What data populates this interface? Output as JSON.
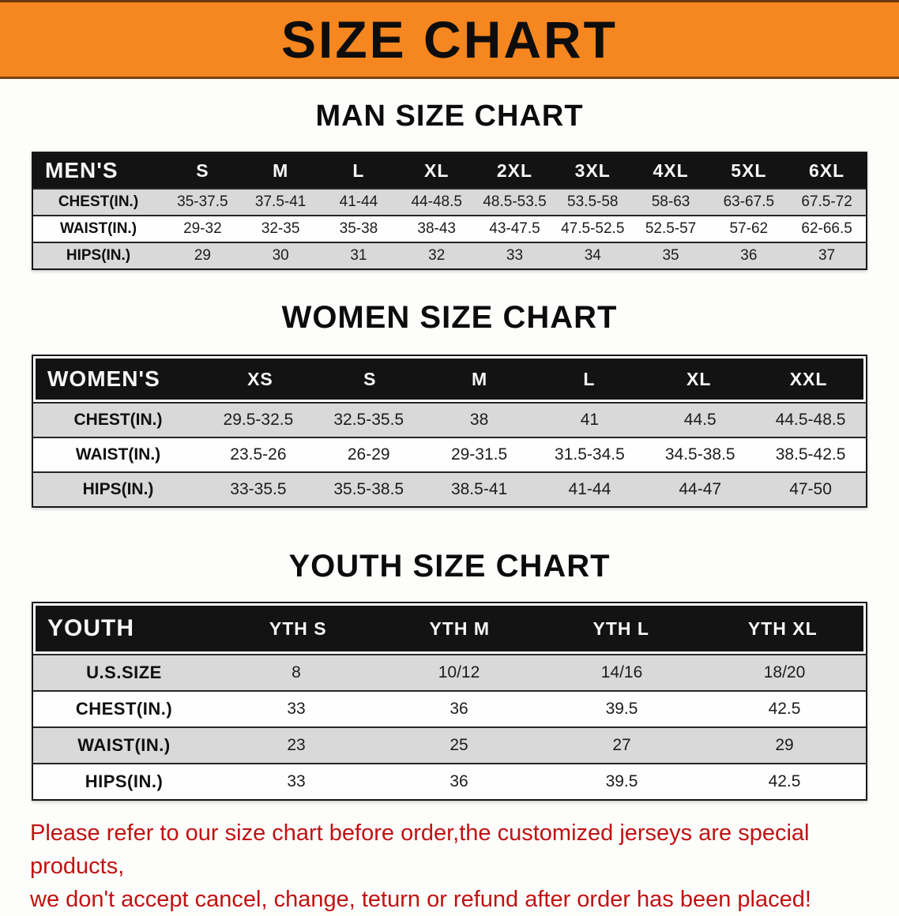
{
  "banner": {
    "title": "SIZE CHART",
    "bg_color": "#f6861f",
    "text_color": "#0d0d0d"
  },
  "charts": [
    {
      "id": "men",
      "heading": "MAN SIZE CHART",
      "header": [
        "MEN'S",
        "S",
        "M",
        "L",
        "XL",
        "2XL",
        "3XL",
        "4XL",
        "5XL",
        "6XL"
      ],
      "rows": [
        {
          "label": "CHEST(IN.)",
          "values": [
            "35-37.5",
            "37.5-41",
            "41-44",
            "44-48.5",
            "48.5-53.5",
            "53.5-58",
            "58-63",
            "63-67.5",
            "67.5-72"
          ]
        },
        {
          "label": "WAIST(IN.)",
          "values": [
            "29-32",
            "32-35",
            "35-38",
            "38-43",
            "43-47.5",
            "47.5-52.5",
            "52.5-57",
            "57-62",
            "62-66.5"
          ]
        },
        {
          "label": "HIPS(IN.)",
          "values": [
            "29",
            "30",
            "31",
            "32",
            "33",
            "34",
            "35",
            "36",
            "37"
          ]
        }
      ]
    },
    {
      "id": "women",
      "heading": "WOMEN SIZE CHART",
      "header": [
        "WOMEN'S",
        "XS",
        "S",
        "M",
        "L",
        "XL",
        "XXL"
      ],
      "rows": [
        {
          "label": "CHEST(IN.)",
          "values": [
            "29.5-32.5",
            "32.5-35.5",
            "38",
            "41",
            "44.5",
            "44.5-48.5"
          ]
        },
        {
          "label": "WAIST(IN.)",
          "values": [
            "23.5-26",
            "26-29",
            "29-31.5",
            "31.5-34.5",
            "34.5-38.5",
            "38.5-42.5"
          ]
        },
        {
          "label": "HIPS(IN.)",
          "values": [
            "33-35.5",
            "35.5-38.5",
            "38.5-41",
            "41-44",
            "44-47",
            "47-50"
          ]
        }
      ]
    },
    {
      "id": "youth",
      "heading": "YOUTH SIZE CHART",
      "header": [
        "YOUTH",
        "YTH S",
        "YTH M",
        "YTH L",
        "YTH XL"
      ],
      "rows": [
        {
          "label": "U.S.SIZE",
          "values": [
            "8",
            "10/12",
            "14/16",
            "18/20"
          ]
        },
        {
          "label": "CHEST(IN.)",
          "values": [
            "33",
            "36",
            "39.5",
            "42.5"
          ]
        },
        {
          "label": "WAIST(IN.)",
          "values": [
            "23",
            "25",
            "27",
            "29"
          ]
        },
        {
          "label": "HIPS(IN.)",
          "values": [
            "33",
            "36",
            "39.5",
            "42.5"
          ]
        }
      ]
    }
  ],
  "disclaimer": {
    "line1": "Please refer to our size chart before order,the customized jerseys are special products,",
    "line2": "we don't accept cancel, change, teturn or refund after order has been placed!",
    "text_color": "#c01212"
  },
  "row_colors": {
    "shaded": "#d9d9d9",
    "plain": "#fefefe",
    "header_bg": "#131313"
  }
}
